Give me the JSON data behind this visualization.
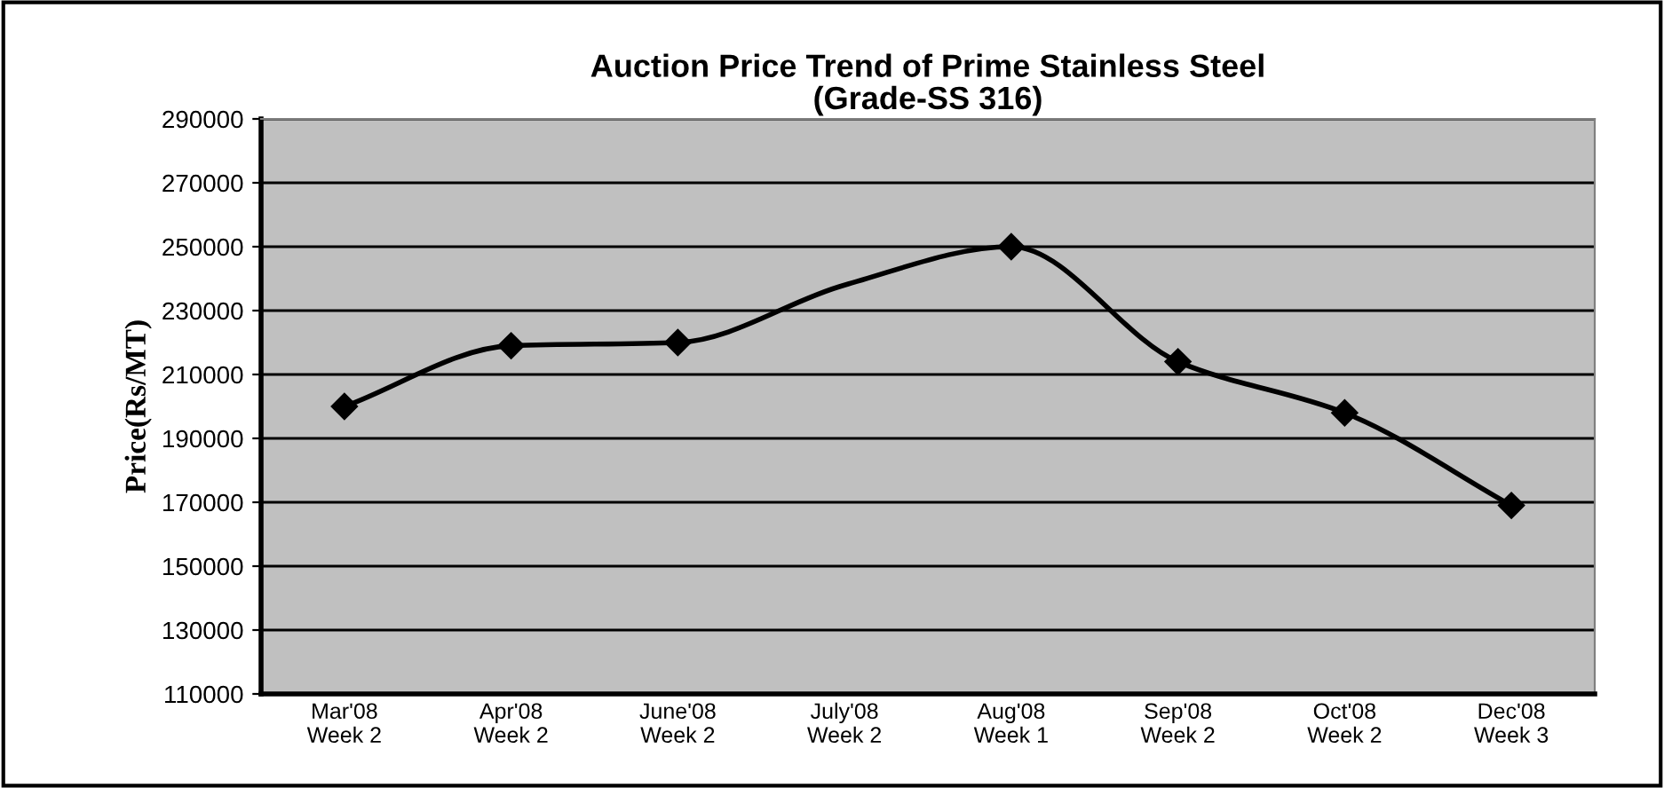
{
  "chart_data": {
    "type": "line",
    "title": "Auction Price Trend of Prime Stainless Steel\n(Grade-SS 316)",
    "ylabel": "Price(Rs/MT)",
    "categories": [
      "Mar'08\nWeek 2",
      "Apr'08\nWeek 2",
      "June'08\nWeek 2",
      "July'08\nWeek 2",
      "Aug'08\nWeek 1",
      "Sep'08\nWeek 2",
      "Oct'08\nWeek 2",
      "Dec'08\nWeek 3"
    ],
    "series": [
      {
        "color": "#000000",
        "marker": "none",
        "values": [
          200000,
          219000,
          220000,
          238000,
          250000,
          214000,
          198000,
          169000
        ]
      },
      {
        "type": "scatter",
        "color": "#000000",
        "marker": "diamond",
        "values": [
          200000,
          219000,
          220000,
          null,
          250000,
          214000,
          198000,
          169000
        ]
      }
    ],
    "ylim": [
      110000,
      290000
    ],
    "yticks": [
      110000,
      130000,
      150000,
      170000,
      190000,
      210000,
      230000,
      250000,
      270000,
      290000
    ],
    "grid": "y"
  }
}
